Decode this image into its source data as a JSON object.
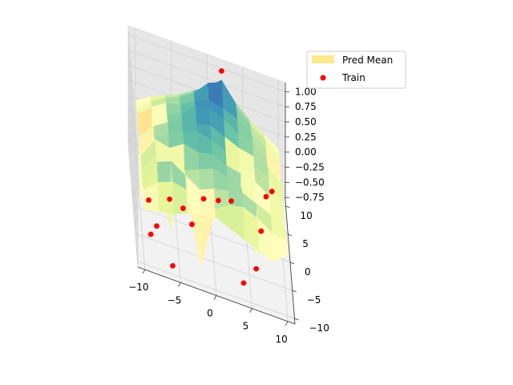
{
  "chart_data": {
    "type": "surface3d",
    "title": "",
    "xlabel": "",
    "ylabel": "",
    "zlabel": "",
    "xlim": [
      -11,
      11
    ],
    "ylim": [
      -11,
      11
    ],
    "zlim": [
      -0.8,
      1.15
    ],
    "x_ticks": [
      -10,
      -5,
      0,
      5,
      10
    ],
    "y_ticks": [
      -10,
      -5,
      0,
      5,
      10
    ],
    "z_ticks": [
      -0.75,
      -0.5,
      -0.25,
      0.0,
      0.25,
      0.5,
      0.75,
      1.0
    ],
    "x_tick_labels": [
      "−10",
      "−5",
      "0",
      "5",
      "10"
    ],
    "y_tick_labels": [
      "−10",
      "−5",
      "0",
      "5",
      "10"
    ],
    "z_tick_labels": [
      "−0.75",
      "−0.50",
      "−0.25",
      "0.00",
      "0.25",
      "0.50",
      "0.75",
      "1.00"
    ],
    "grid": true,
    "colormap": "Spectral",
    "legend": {
      "placement": "top-right",
      "entries": [
        {
          "label": "Pred Mean",
          "marker": "patch",
          "color": "#fde98e"
        },
        {
          "label": "Train",
          "marker": "dot",
          "color": "#ff0000"
        }
      ]
    },
    "surface": {
      "name": "Pred Mean",
      "x": [
        -10,
        -8,
        -6,
        -4,
        -2,
        0,
        2,
        4,
        6,
        8,
        10
      ],
      "y": [
        -10,
        -8,
        -6,
        -4,
        -2,
        0,
        2,
        4,
        6,
        8,
        10
      ],
      "z": [
        [
          0.1,
          0.15,
          0.2,
          0.3,
          0.35,
          0.4,
          0.3,
          0.2,
          0.1,
          0.0,
          0.2
        ],
        [
          0.25,
          0.45,
          0.55,
          0.5,
          -0.7,
          0.35,
          0.5,
          0.55,
          0.45,
          0.3,
          0.25
        ],
        [
          0.15,
          0.6,
          0.7,
          0.55,
          0.4,
          0.5,
          0.55,
          0.6,
          0.5,
          0.4,
          0.2
        ],
        [
          0.2,
          0.55,
          -0.6,
          0.45,
          0.55,
          0.65,
          0.6,
          0.5,
          -0.55,
          0.45,
          0.1
        ],
        [
          0.25,
          0.6,
          0.55,
          0.7,
          0.65,
          0.7,
          0.6,
          0.55,
          0.5,
          0.35,
          0.15
        ],
        [
          -0.7,
          0.45,
          0.6,
          0.7,
          0.8,
          0.75,
          0.65,
          -0.65,
          0.55,
          0.5,
          0.1
        ],
        [
          0.2,
          0.45,
          0.6,
          0.7,
          0.75,
          0.8,
          0.7,
          0.6,
          0.55,
          0.45,
          0.25
        ],
        [
          0.15,
          -0.65,
          0.55,
          0.65,
          0.85,
          0.9,
          0.8,
          0.65,
          0.6,
          0.4,
          -0.55
        ],
        [
          0.2,
          0.4,
          0.55,
          0.6,
          0.75,
          0.85,
          0.8,
          0.7,
          0.55,
          0.4,
          0.2
        ],
        [
          0.1,
          0.3,
          0.45,
          0.55,
          0.7,
          0.95,
          1.05,
          0.7,
          0.5,
          0.35,
          0.15
        ],
        [
          0.05,
          0.2,
          0.3,
          0.4,
          0.55,
          0.7,
          0.9,
          0.6,
          0.4,
          0.25,
          0.1
        ]
      ]
    },
    "train_points": {
      "name": "Train",
      "points": [
        {
          "x": 2,
          "y": 10,
          "z": 1.05
        },
        {
          "x": -9,
          "y": -8,
          "z": -0.45
        },
        {
          "x": -8,
          "y": -5,
          "z": -0.55
        },
        {
          "x": -3,
          "y": -4,
          "z": -0.4
        },
        {
          "x": -6,
          "y": -2,
          "z": -0.3
        },
        {
          "x": -4,
          "y": 0,
          "z": -0.55
        },
        {
          "x": -1,
          "y": 2,
          "z": -0.45
        },
        {
          "x": 1,
          "y": 1,
          "z": -0.3
        },
        {
          "x": -6,
          "y": -9,
          "z": -0.75
        },
        {
          "x": 4,
          "y": -8,
          "z": -0.7
        },
        {
          "x": 6,
          "y": -4,
          "z": -0.75
        },
        {
          "x": 7,
          "y": 1,
          "z": -0.55
        },
        {
          "x": 8,
          "y": 6,
          "z": -0.4
        },
        {
          "x": 9,
          "y": 9,
          "z": -0.55
        },
        {
          "x": -9,
          "y": -3,
          "z": -0.35
        },
        {
          "x": 3,
          "y": 4,
          "z": -0.5
        }
      ]
    }
  }
}
